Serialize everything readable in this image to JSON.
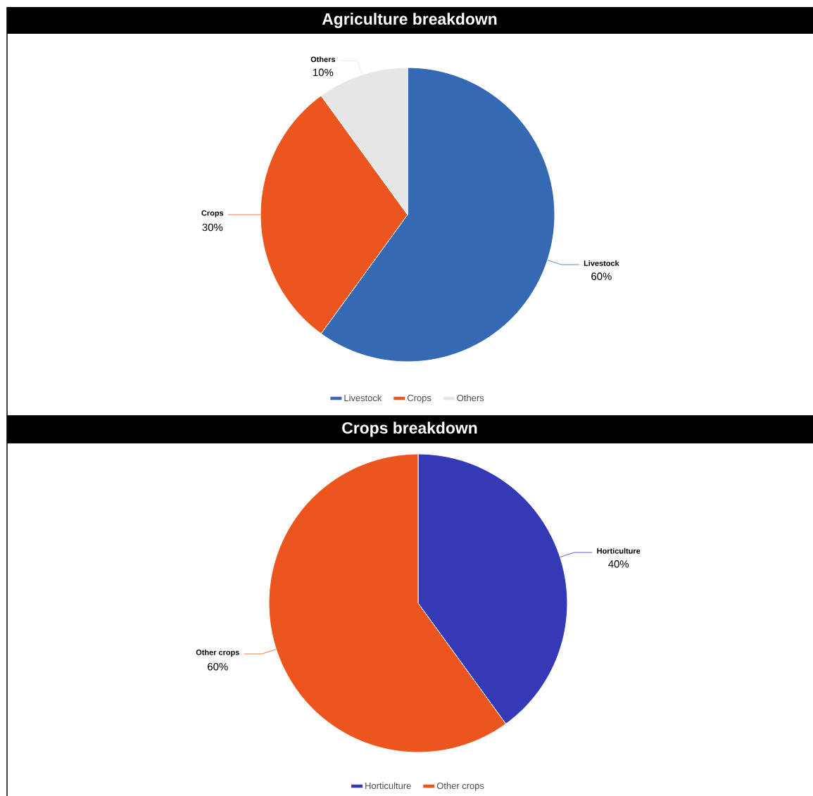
{
  "chart_data": [
    {
      "type": "pie",
      "title": "Agriculture breakdown",
      "categories": [
        "Livestock",
        "Crops",
        "Others"
      ],
      "values": [
        60,
        30,
        10
      ],
      "value_labels": [
        "60%",
        "30%",
        "10%"
      ],
      "colors": [
        "#3569b4",
        "#ec561e",
        "#e6e6e6"
      ],
      "legend": "bottom"
    },
    {
      "type": "pie",
      "title": "Crops breakdown",
      "categories": [
        "Horticulture",
        "Other crops"
      ],
      "values": [
        40,
        60
      ],
      "value_labels": [
        "40%",
        "60%"
      ],
      "colors": [
        "#343ab5",
        "#ec561e"
      ],
      "legend": "bottom"
    }
  ]
}
